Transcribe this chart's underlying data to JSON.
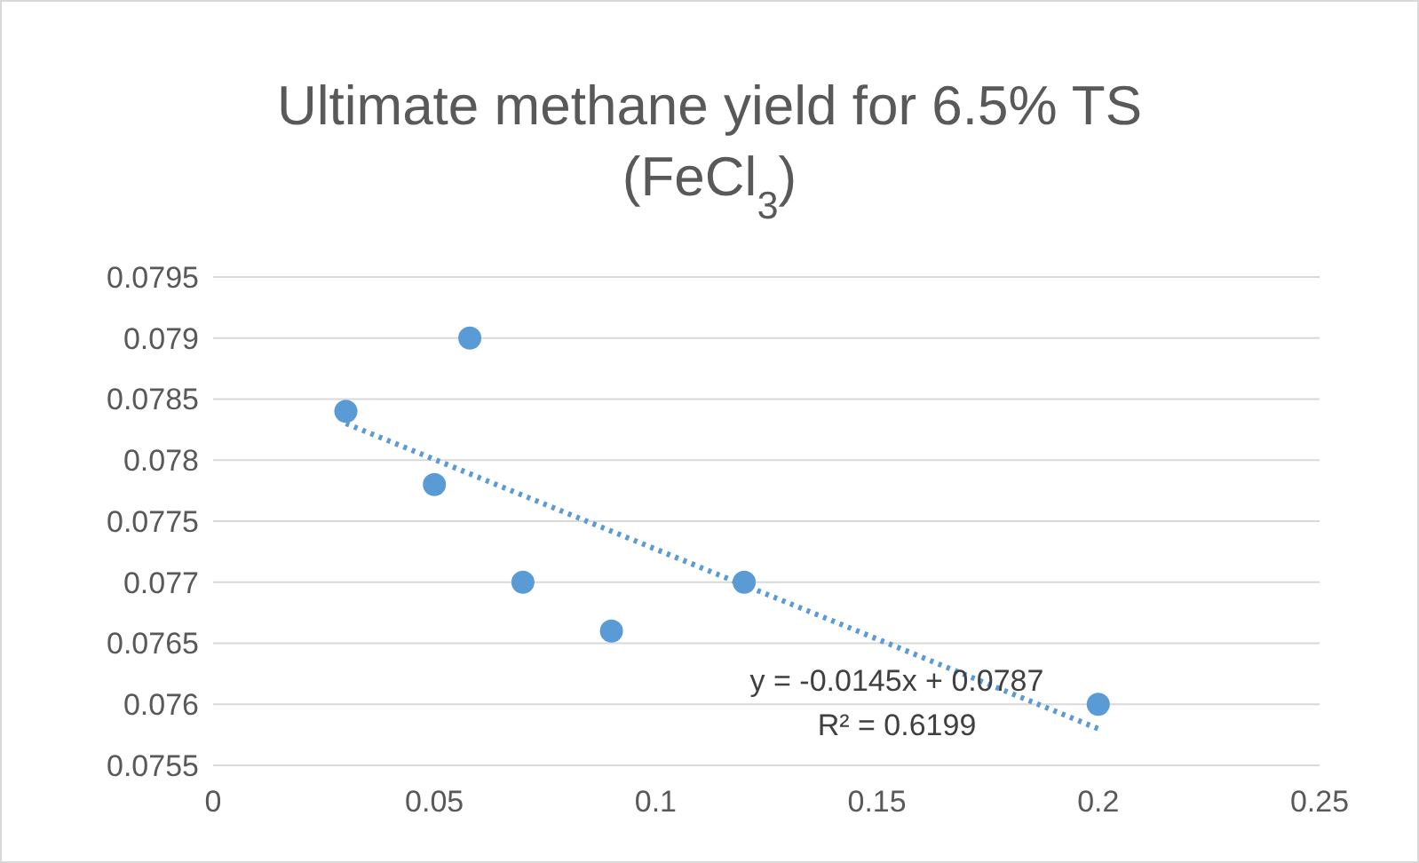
{
  "chart_data": {
    "type": "scatter",
    "title": "Ultimate methane yield for 6.5% TS\n(FeCl$_{3}$)",
    "series": [
      {
        "color": "#5b9bd5",
        "marker": "circle",
        "x": [
          0.03,
          0.058,
          0.05,
          0.07,
          0.09,
          0.12,
          0.2
        ],
        "values": [
          0.0784,
          0.079,
          0.0778,
          0.077,
          0.0766,
          0.077,
          0.076
        ]
      },
      {
        "type": "line",
        "color": "#5b9bd5",
        "marker": "none",
        "line_style": "dotted",
        "x": [
          0.03,
          0.2
        ],
        "values": [
          0.0783,
          0.0758
        ]
      }
    ],
    "xlim": [
      0,
      0.25
    ],
    "xticks": [
      0,
      0.05,
      0.1,
      0.15,
      0.2,
      0.25
    ],
    "ylim": [
      0.0755,
      0.0795
    ],
    "yticks": [
      0.0755,
      0.076,
      0.0765,
      0.077,
      0.0775,
      0.078,
      0.0785,
      0.079,
      0.0795
    ],
    "grid": "y",
    "annotations": [
      "y = -0.0145x + 0.0787",
      "R² = 0.6199"
    ]
  }
}
